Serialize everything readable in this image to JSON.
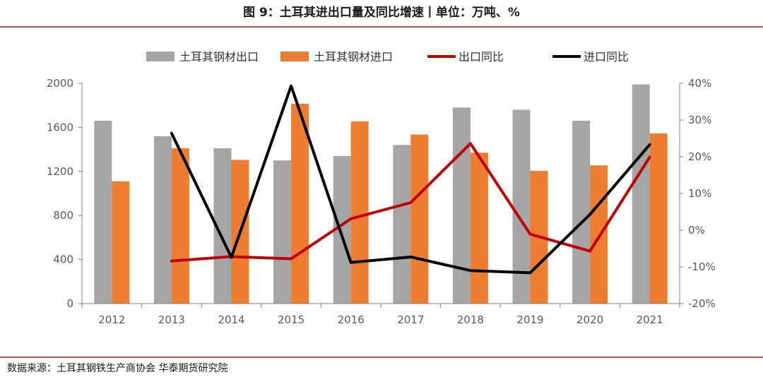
{
  "figure_title": "图 9：土耳其进出口量及同比增速丨单位：万吨、%",
  "source": "数据来源：土耳其钢铁生产商协会 华泰期货研究院",
  "colors": {
    "rule": "#c0504d",
    "export_bar": "#a5a5a5",
    "import_bar": "#ed7d31",
    "export_yoy_line": "#c00000",
    "import_yoy_line": "#000000"
  },
  "chart_data": {
    "type": "bar",
    "categories": [
      "2012",
      "2013",
      "2014",
      "2015",
      "2016",
      "2017",
      "2018",
      "2019",
      "2020",
      "2021"
    ],
    "series": [
      {
        "name": "土耳其钢材出口",
        "type": "bar",
        "axis": "left",
        "values": [
          1660,
          1520,
          1410,
          1300,
          1340,
          1440,
          1780,
          1760,
          1660,
          1990
        ]
      },
      {
        "name": "土耳其钢材进口",
        "type": "bar",
        "axis": "left",
        "values": [
          1110,
          1410,
          1305,
          1815,
          1655,
          1535,
          1370,
          1205,
          1255,
          1545
        ]
      },
      {
        "name": "出口同比",
        "type": "line",
        "axis": "right",
        "values": [
          null,
          -8.4,
          -7.2,
          -7.8,
          3.1,
          7.5,
          23.6,
          -1.1,
          -5.7,
          19.9
        ]
      },
      {
        "name": "进口同比",
        "type": "line",
        "axis": "right",
        "values": [
          null,
          26.4,
          -7.4,
          39.3,
          -8.8,
          -7.3,
          -11.0,
          -11.6,
          4.3,
          23.3
        ]
      }
    ],
    "y_left": {
      "min": 0,
      "max": 2000,
      "ticks": [
        "0",
        "400",
        "800",
        "1200",
        "1600",
        "2000"
      ]
    },
    "y_right": {
      "min": -20,
      "max": 40,
      "ticks": [
        "-20%",
        "-10%",
        "0%",
        "10%",
        "20%",
        "30%",
        "40%"
      ]
    },
    "legend_position": "top",
    "grid": false
  }
}
